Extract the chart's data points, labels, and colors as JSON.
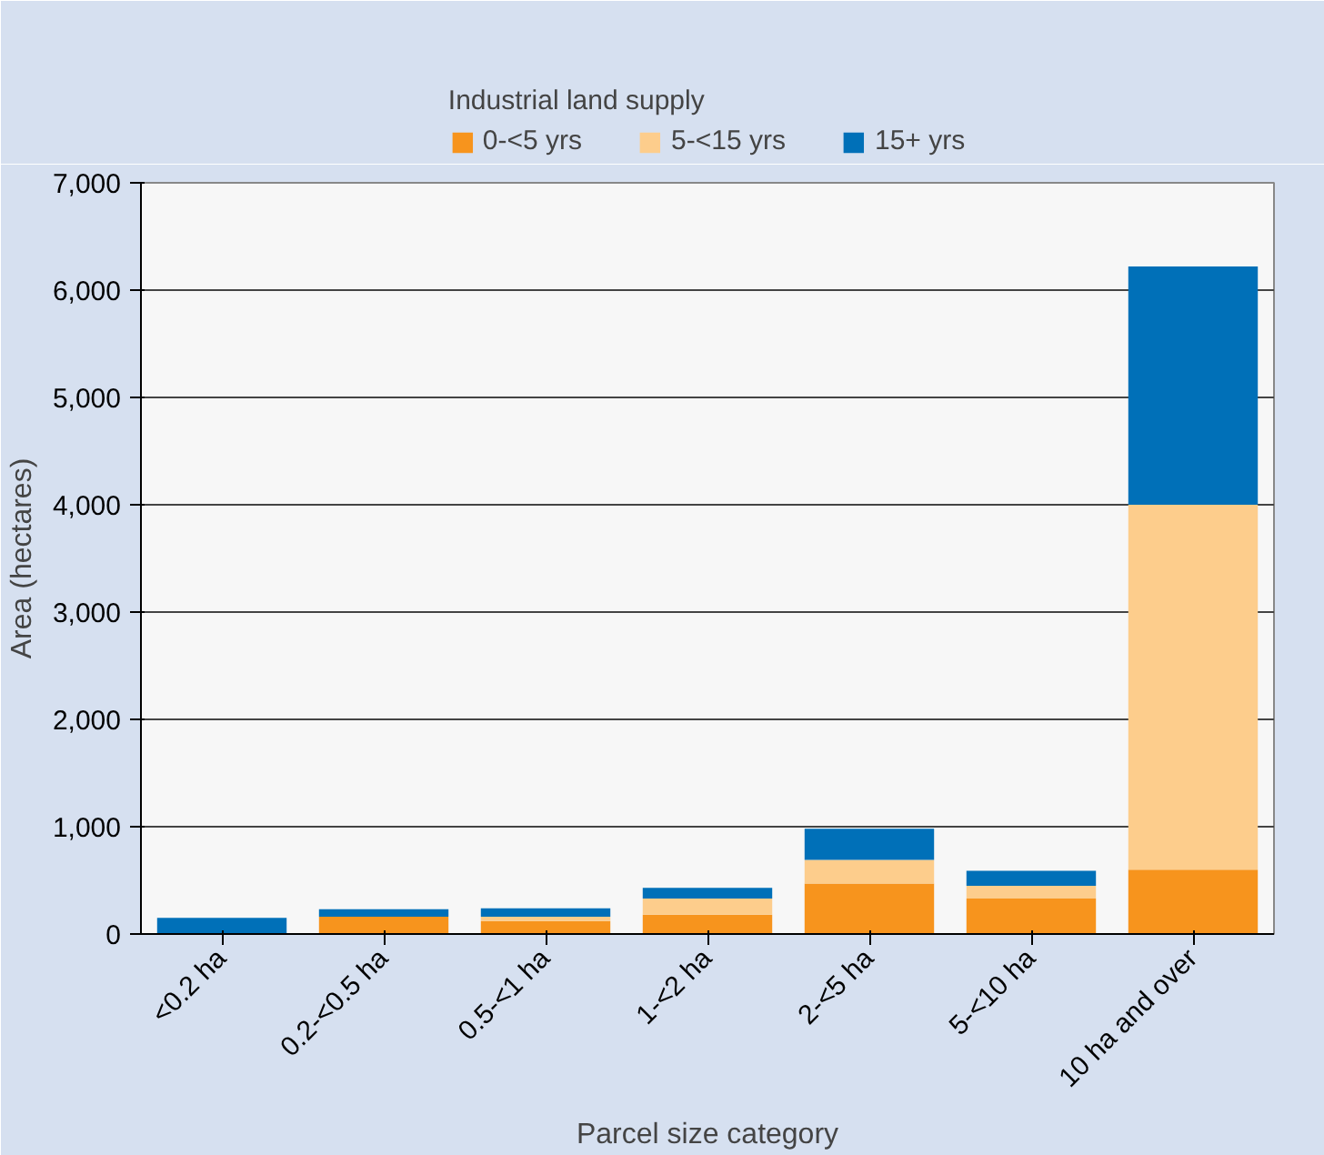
{
  "chart_data": {
    "type": "bar",
    "stacked": true,
    "legend_title": "Industrial land supply",
    "xlabel": "Parcel size category",
    "ylabel": "Area (hectares)",
    "categories": [
      "<0.2 ha",
      "0.2-<0.5 ha",
      "0.5-<1 ha",
      "1-<2 ha",
      "2-<5 ha",
      "5-<10 ha",
      "10 ha and over"
    ],
    "series": [
      {
        "name": "0-<5 yrs",
        "color": "#f7941d",
        "values": [
          null,
          160,
          120,
          180,
          470,
          330,
          600
        ]
      },
      {
        "name": "5-<15 yrs",
        "color": "#fdcd8c",
        "values": [
          0,
          0,
          40,
          150,
          220,
          120,
          3400
        ]
      },
      {
        "name": "15+ yrs",
        "color": "#0070b8",
        "values": [
          150,
          70,
          80,
          100,
          290,
          140,
          2220
        ]
      }
    ],
    "ylim": [
      0,
      7000
    ],
    "yticks": [
      {
        "value": 0,
        "label": "0"
      },
      {
        "value": 1000,
        "label": "1,000"
      },
      {
        "value": 2000,
        "label": "2,000"
      },
      {
        "value": 3000,
        "label": "3,000"
      },
      {
        "value": 4000,
        "label": "4,000"
      },
      {
        "value": 5000,
        "label": "5,000"
      },
      {
        "value": 6000,
        "label": "6,000"
      },
      {
        "value": 7000,
        "label": "7,000"
      }
    ],
    "grid": "y",
    "legend": "top"
  }
}
